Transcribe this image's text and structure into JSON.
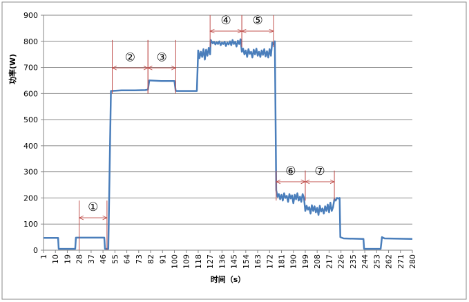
{
  "chart_data": {
    "type": "line",
    "xlabel": "时间（s）",
    "ylabel": "功率(W)",
    "xlim": [
      1,
      280
    ],
    "ylim": [
      0,
      900
    ],
    "xticks": [
      1,
      10,
      19,
      28,
      37,
      46,
      55,
      64,
      73,
      82,
      91,
      100,
      109,
      118,
      127,
      136,
      145,
      154,
      163,
      172,
      181,
      190,
      199,
      208,
      217,
      226,
      235,
      244,
      253,
      262,
      271,
      280
    ],
    "yticks": [
      0,
      100,
      200,
      300,
      400,
      500,
      600,
      700,
      800,
      900
    ],
    "grid": true,
    "series": [
      {
        "color": "#4a7ebb",
        "x": [
          1,
          12,
          12.5,
          25,
          25.5,
          47,
          47.5,
          50,
          52,
          60,
          70,
          78,
          80,
          81,
          90,
          100,
          101,
          117,
          118,
          119,
          120,
          121,
          122,
          123,
          124,
          125,
          126,
          127,
          127.5,
          129,
          130,
          131,
          132,
          133,
          134,
          135,
          136,
          137,
          138,
          139,
          140,
          141,
          142,
          143,
          144,
          145,
          146,
          147,
          148,
          149,
          150,
          151,
          152,
          153,
          154,
          155,
          156,
          157,
          158,
          159,
          160,
          161,
          162,
          163,
          164,
          165,
          166,
          167,
          168,
          169,
          170,
          171,
          172,
          173,
          174,
          175,
          176,
          177,
          178,
          179,
          180,
          181,
          182,
          183,
          184,
          185,
          186,
          187,
          188,
          189,
          190,
          191,
          192,
          193,
          194,
          195,
          196,
          197,
          198,
          199,
          200,
          201,
          202,
          203,
          204,
          205,
          206,
          207,
          208,
          209,
          210,
          211,
          212,
          213,
          214,
          215,
          216,
          217,
          218,
          219,
          220,
          221,
          222,
          223,
          224,
          225,
          225.5,
          228,
          243,
          243.5,
          256,
          257,
          259,
          280
        ],
        "values": [
          47,
          47,
          5,
          5,
          48,
          48,
          5,
          5,
          610,
          612,
          612,
          613,
          615,
          650,
          648,
          648,
          610,
          610,
          765,
          735,
          760,
          740,
          770,
          730,
          768,
          745,
          775,
          750,
          805,
          792,
          798,
          788,
          796,
          790,
          800,
          785,
          795,
          790,
          798,
          782,
          795,
          788,
          800,
          785,
          805,
          790,
          798,
          780,
          802,
          790,
          808,
          760,
          772,
          750,
          765,
          740,
          770,
          752,
          760,
          738,
          768,
          750,
          772,
          745,
          760,
          740,
          765,
          748,
          770,
          742,
          762,
          738,
          770,
          745,
          795,
          788,
          800,
          230,
          205,
          215,
          195,
          212,
          190,
          218,
          200,
          208,
          185,
          215,
          198,
          210,
          180,
          212,
          195,
          218,
          190,
          205,
          185,
          215,
          200,
          150,
          170,
          155,
          165,
          140,
          172,
          150,
          168,
          145,
          162,
          135,
          170,
          148,
          160,
          140,
          168,
          150,
          175,
          145,
          182,
          150,
          165,
          195,
          190,
          200,
          198,
          200,
          50,
          45,
          43,
          5,
          5,
          50,
          45,
          43
        ]
      }
    ],
    "annotations": [
      {
        "text": "①",
        "x": [
          28,
          49
        ],
        "y": 124,
        "span": [
          0,
          190
        ]
      },
      {
        "text": "②",
        "x": [
          53,
          80
        ],
        "y": 698,
        "span": [
          600,
          805
        ]
      },
      {
        "text": "③",
        "x": [
          80,
          101
        ],
        "y": 698,
        "span": [
          600,
          805
        ]
      },
      {
        "text": "④",
        "x": [
          127,
          151
        ],
        "y": 839,
        "span": [
          778,
          900
        ]
      },
      {
        "text": "⑤",
        "x": [
          151,
          175
        ],
        "y": 839,
        "span": [
          778,
          900
        ]
      },
      {
        "text": "⑥",
        "x": [
          177,
          199
        ],
        "y": 262,
        "span": [
          190,
          305
        ]
      },
      {
        "text": "⑦",
        "x": [
          199,
          221
        ],
        "y": 262,
        "span": [
          190,
          305
        ]
      }
    ]
  }
}
